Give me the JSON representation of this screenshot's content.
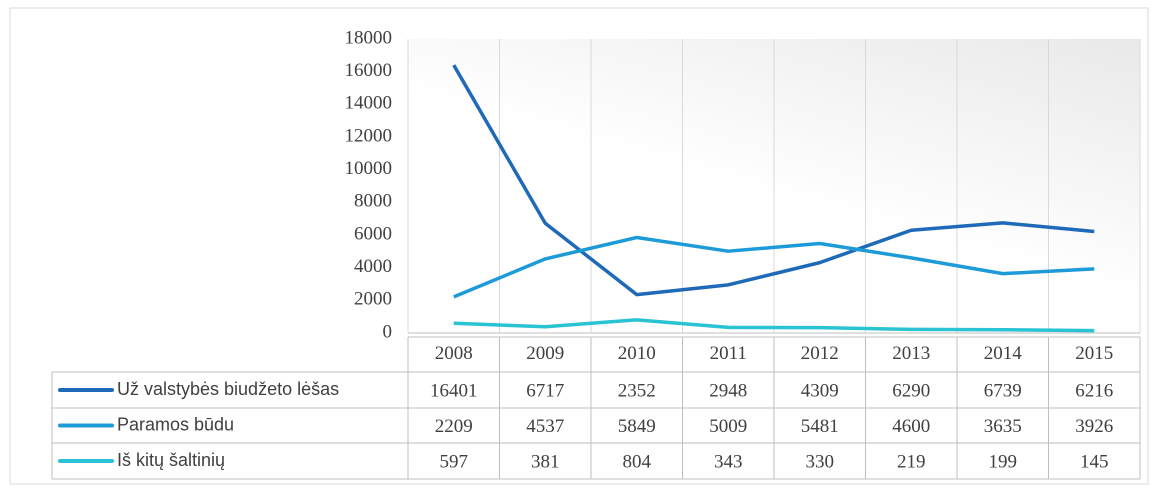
{
  "chart_data": {
    "type": "line",
    "categories": [
      "2008",
      "2009",
      "2010",
      "2011",
      "2012",
      "2013",
      "2014",
      "2015"
    ],
    "series": [
      {
        "name": "Už valstybės biudžeto lėšas",
        "color": "#1f6ab8",
        "values": [
          16401,
          6717,
          2352,
          2948,
          4309,
          6290,
          6739,
          6216
        ]
      },
      {
        "name": "Paramos būdu",
        "color": "#1c9bd8",
        "values": [
          2209,
          4537,
          5849,
          5009,
          5481,
          4600,
          3635,
          3926
        ]
      },
      {
        "name": "Iš kitų šaltinių",
        "color": "#2ac3d3",
        "values": [
          597,
          381,
          804,
          343,
          330,
          219,
          199,
          145
        ]
      }
    ],
    "ylim": [
      0,
      18000
    ],
    "yticks": [
      0,
      2000,
      4000,
      6000,
      8000,
      10000,
      12000,
      14000,
      16000,
      18000
    ],
    "grid": true
  }
}
